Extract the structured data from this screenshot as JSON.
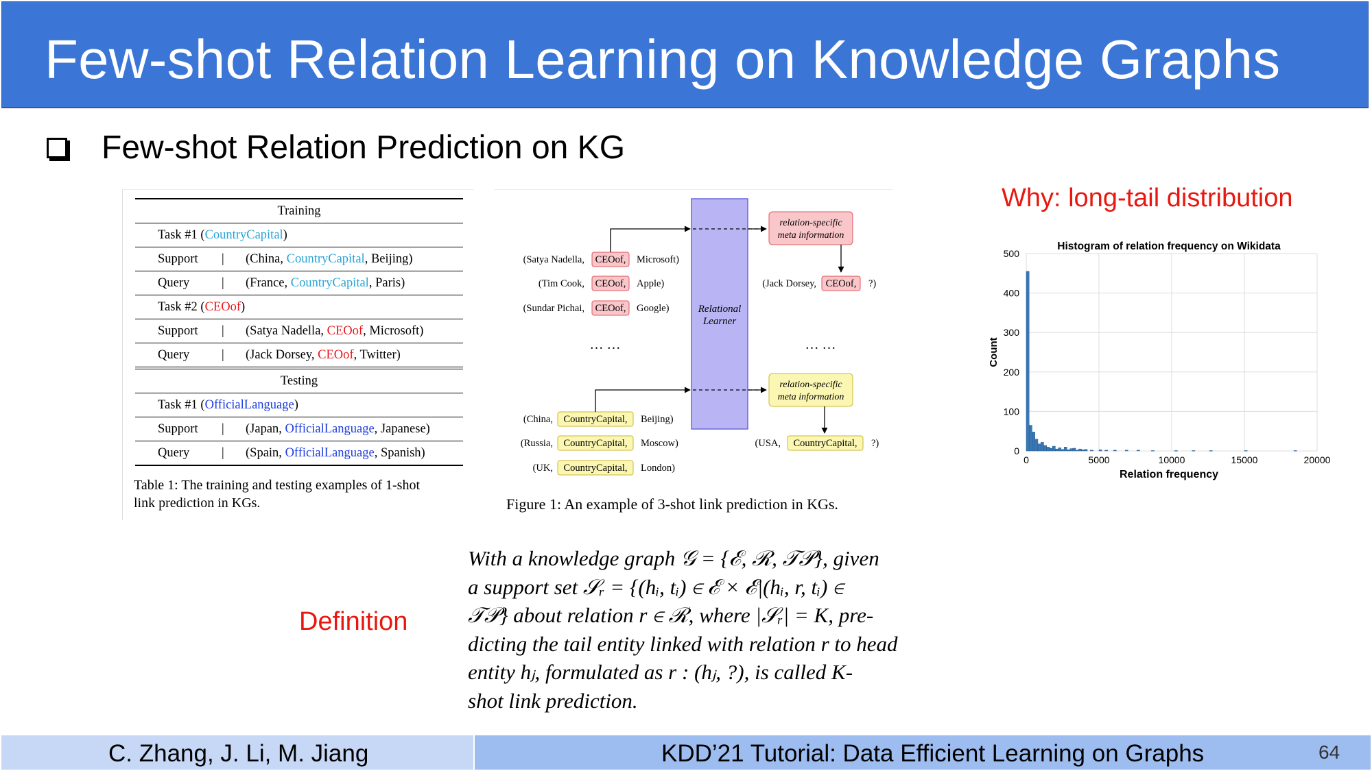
{
  "slide": {
    "title": "Few-shot Relation Learning on Knowledge Graphs",
    "bullet": "Few-shot Relation Prediction on KG",
    "why_label": "Why: long-tail distribution",
    "definition_label": "Definition",
    "definition_lines": [
      "With a knowledge graph 𝒢 = {ℰ, ℛ, 𝒯𝒫}, given",
      "a support set 𝒮ᵣ = {(hᵢ, tᵢ) ∈ ℰ × ℰ|(hᵢ, r, tᵢ) ∈",
      "𝒯𝒫} about relation r ∈ ℛ, where |𝒮ᵣ| = K, pre-",
      "dicting the tail entity linked with relation r to head",
      "entity hⱼ, formulated as r : (hⱼ, ?), is called K-",
      "shot link prediction."
    ]
  },
  "table1": {
    "training_header": "Training",
    "testing_header": "Testing",
    "task1_prefix": "Task #1 (",
    "task1_rel": "CountryCapital",
    "task1_suffix": ")",
    "support1_label": "Support",
    "support1_a": "(China, ",
    "support1_rel": "CountryCapital",
    "support1_b": ", Beijing)",
    "query1_label": "Query",
    "query1_a": "(France, ",
    "query1_rel": "CountryCapital",
    "query1_b": ", Paris)",
    "task2_prefix": "Task #2 (",
    "task2_rel": "CEOof",
    "task2_suffix": ")",
    "support2_label": "Support",
    "support2_a": "(Satya Nadella, ",
    "support2_rel": "CEOof",
    "support2_b": ", Microsoft)",
    "query2_label": "Query",
    "query2_a": "(Jack Dorsey, ",
    "query2_rel": "CEOof",
    "query2_b": ", Twitter)",
    "task3_prefix": "Task #1 (",
    "task3_rel": "OfficialLanguage",
    "task3_suffix": ")",
    "support3_label": "Support",
    "support3_a": "(Japan, ",
    "support3_rel": "OfficialLanguage",
    "support3_b": ", Japanese)",
    "query3_label": "Query",
    "query3_a": "(Spain, ",
    "query3_rel": "OfficialLanguage",
    "query3_b": ", Spanish)",
    "caption_line1": "Table 1:  The training and testing examples of 1-shot",
    "caption_line2": "link prediction in KGs.",
    "sep": "|"
  },
  "figure1": {
    "rows_top": [
      {
        "head": "(Satya Nadella,",
        "rel": "CEOof,",
        "tail": "Microsoft)"
      },
      {
        "head": "(Tim Cook,",
        "rel": "CEOof,",
        "tail": "Apple)"
      },
      {
        "head": "(Sundar Pichai,",
        "rel": "CEOof,",
        "tail": "Google)"
      }
    ],
    "rows_bottom": [
      {
        "head": "(China,",
        "rel": "CountryCapital,",
        "tail": "Beijing)"
      },
      {
        "head": "(Russia,",
        "rel": "CountryCapital,",
        "tail": "Moscow)"
      },
      {
        "head": "(UK,",
        "rel": "CountryCapital,",
        "tail": "London)"
      }
    ],
    "learner_line1": "Relational",
    "learner_line2": "Learner",
    "meta_line1": "relation-specific",
    "meta_line2": "meta information",
    "query_top_head": "(Jack Dorsey,",
    "query_top_rel": "CEOof,",
    "query_top_tail": "?)",
    "query_bottom_head": "(USA,",
    "query_bottom_rel": "CountryCapital,",
    "query_bottom_tail": "?)",
    "ellipsis": "… …",
    "caption": "Figure 1:  An example of 3-shot link prediction in KGs.",
    "colors": {
      "red_fill": "#f9c6c9",
      "red_stroke": "#e0585f",
      "yellow_fill": "#fbf7b3",
      "yellow_stroke": "#c9b735",
      "learner_fill": "#b9b5f4",
      "learner_stroke": "#6b66d8"
    }
  },
  "chart_data": {
    "type": "bar",
    "title": "Histogram of relation frequency on Wikidata",
    "xlabel": "Relation frequency",
    "ylabel": "Count",
    "xlim": [
      0,
      20000
    ],
    "ylim": [
      0,
      500
    ],
    "xticks": [
      "0",
      "5000",
      "10000",
      "15000",
      "20000"
    ],
    "yticks": [
      "0",
      "100",
      "200",
      "300",
      "400",
      "500"
    ],
    "grid": true,
    "bar_color": "#3a78b5",
    "bins": [
      {
        "x0": 0,
        "x1": 200,
        "count": 455
      },
      {
        "x0": 200,
        "x1": 400,
        "count": 65
      },
      {
        "x0": 400,
        "x1": 600,
        "count": 48
      },
      {
        "x0": 600,
        "x1": 800,
        "count": 30
      },
      {
        "x0": 800,
        "x1": 1000,
        "count": 18
      },
      {
        "x0": 1000,
        "x1": 1200,
        "count": 22
      },
      {
        "x0": 1200,
        "x1": 1400,
        "count": 14
      },
      {
        "x0": 1400,
        "x1": 1600,
        "count": 10
      },
      {
        "x0": 1600,
        "x1": 1800,
        "count": 7
      },
      {
        "x0": 1800,
        "x1": 2000,
        "count": 12
      },
      {
        "x0": 2000,
        "x1": 2200,
        "count": 5
      },
      {
        "x0": 2200,
        "x1": 2400,
        "count": 8
      },
      {
        "x0": 2400,
        "x1": 2600,
        "count": 4
      },
      {
        "x0": 2600,
        "x1": 2800,
        "count": 10
      },
      {
        "x0": 2800,
        "x1": 3000,
        "count": 3
      },
      {
        "x0": 3000,
        "x1": 3200,
        "count": 6
      },
      {
        "x0": 3200,
        "x1": 3400,
        "count": 7
      },
      {
        "x0": 3400,
        "x1": 3600,
        "count": 2
      },
      {
        "x0": 3600,
        "x1": 3800,
        "count": 5
      },
      {
        "x0": 3800,
        "x1": 4000,
        "count": 3
      },
      {
        "x0": 4000,
        "x1": 4200,
        "count": 4
      },
      {
        "x0": 4400,
        "x1": 4600,
        "count": 2
      },
      {
        "x0": 5000,
        "x1": 5200,
        "count": 3
      },
      {
        "x0": 5400,
        "x1": 5600,
        "count": 2
      },
      {
        "x0": 6000,
        "x1": 6200,
        "count": 2
      },
      {
        "x0": 6800,
        "x1": 7000,
        "count": 2
      },
      {
        "x0": 7600,
        "x1": 7800,
        "count": 2
      },
      {
        "x0": 8600,
        "x1": 8800,
        "count": 1
      },
      {
        "x0": 10200,
        "x1": 10400,
        "count": 1
      },
      {
        "x0": 11400,
        "x1": 11600,
        "count": 1
      },
      {
        "x0": 12600,
        "x1": 12800,
        "count": 1
      },
      {
        "x0": 15000,
        "x1": 15200,
        "count": 1
      },
      {
        "x0": 18400,
        "x1": 18600,
        "count": 1
      }
    ]
  },
  "footer": {
    "authors": "C. Zhang, J. Li, M. Jiang",
    "event": "KDD’21 Tutorial: Data Efficient Learning on Graphs",
    "page": "64"
  }
}
